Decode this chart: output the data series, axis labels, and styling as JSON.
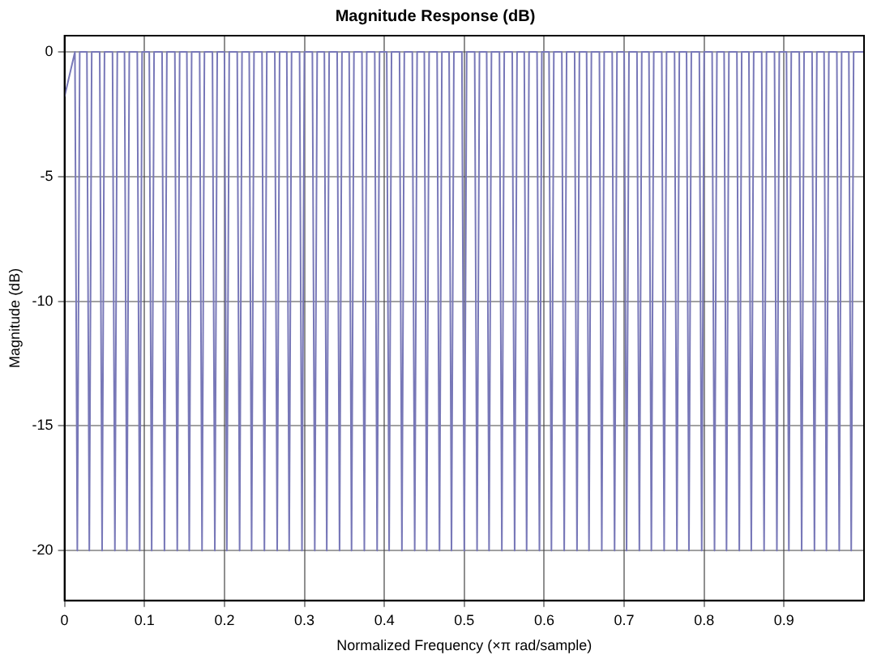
{
  "chart_data": {
    "type": "line",
    "title": "Magnitude Response (dB)",
    "xlabel": "Normalized Frequency (×π rad/sample)",
    "ylabel": "Magnitude (dB)",
    "xlim": [
      0,
      1
    ],
    "xticks": [
      0,
      0.1,
      0.2,
      0.3,
      0.4,
      0.5,
      0.6,
      0.7,
      0.8,
      0.9
    ],
    "ylim": [
      -22,
      0.65
    ],
    "yticks": [
      -20,
      -15,
      -10,
      -5,
      0
    ],
    "grid": true,
    "legend": false,
    "marker": "none",
    "line_style": "solid",
    "series": [
      {
        "color": "#7878b8",
        "x": [
          0,
          0.013,
          0.016,
          0.019,
          0.028,
          0.031,
          0.034,
          0.044,
          0.047,
          0.05,
          0.06,
          0.063,
          0.066,
          0.075,
          0.078,
          0.081,
          0.091,
          0.094,
          0.097,
          0.106,
          0.109,
          0.112,
          0.122,
          0.125,
          0.128,
          0.138,
          0.141,
          0.144,
          0.153,
          0.156,
          0.159,
          0.169,
          0.172,
          0.175,
          0.185,
          0.188,
          0.191,
          0.2,
          0.203,
          0.206,
          0.216,
          0.219,
          0.222,
          0.231,
          0.234,
          0.237,
          0.247,
          0.25,
          0.253,
          0.263,
          0.266,
          0.269,
          0.278,
          0.281,
          0.284,
          0.294,
          0.297,
          0.3,
          0.31,
          0.313,
          0.316,
          0.325,
          0.328,
          0.331,
          0.341,
          0.344,
          0.347,
          0.356,
          0.359,
          0.362,
          0.372,
          0.375,
          0.378,
          0.388,
          0.391,
          0.394,
          0.403,
          0.406,
          0.409,
          0.419,
          0.422,
          0.425,
          0.435,
          0.438,
          0.441,
          0.45,
          0.453,
          0.456,
          0.466,
          0.469,
          0.472,
          0.481,
          0.484,
          0.487,
          0.497,
          0.5,
          0.503,
          0.513,
          0.516,
          0.519,
          0.528,
          0.531,
          0.534,
          0.544,
          0.547,
          0.55,
          0.56,
          0.563,
          0.566,
          0.575,
          0.578,
          0.581,
          0.591,
          0.594,
          0.597,
          0.606,
          0.609,
          0.612,
          0.622,
          0.625,
          0.628,
          0.638,
          0.641,
          0.644,
          0.653,
          0.656,
          0.659,
          0.669,
          0.672,
          0.675,
          0.685,
          0.688,
          0.691,
          0.7,
          0.703,
          0.706,
          0.716,
          0.719,
          0.722,
          0.731,
          0.734,
          0.737,
          0.747,
          0.75,
          0.753,
          0.763,
          0.766,
          0.769,
          0.778,
          0.781,
          0.784,
          0.794,
          0.797,
          0.8,
          0.81,
          0.813,
          0.816,
          0.825,
          0.828,
          0.831,
          0.841,
          0.844,
          0.847,
          0.856,
          0.859,
          0.862,
          0.872,
          0.875,
          0.878,
          0.888,
          0.891,
          0.894,
          0.903,
          0.906,
          0.909,
          0.919,
          0.922,
          0.925,
          0.935,
          0.938,
          0.941,
          0.95,
          0.953,
          0.956,
          0.966,
          0.969,
          0.972,
          0.981,
          0.984,
          0.987,
          1
        ],
        "values": [
          -1.8,
          0,
          -20,
          0,
          0,
          -20,
          0,
          0,
          -20,
          0,
          0,
          -20,
          0,
          0,
          -20,
          0,
          0,
          -20,
          0,
          0,
          -20,
          0,
          0,
          -20,
          0,
          0,
          -20,
          0,
          0,
          -20,
          0,
          0,
          -20,
          0,
          0,
          -20,
          0,
          0,
          -20,
          0,
          0,
          -20,
          0,
          0,
          -20,
          0,
          0,
          -20,
          0,
          0,
          -20,
          0,
          0,
          -20,
          0,
          0,
          -20,
          0,
          0,
          -20,
          0,
          0,
          -20,
          0,
          0,
          -20,
          0,
          0,
          -20,
          0,
          0,
          -20,
          0,
          0,
          -20,
          0,
          0,
          -20,
          0,
          0,
          -20,
          0,
          0,
          -20,
          0,
          0,
          -20,
          0,
          0,
          -20,
          0,
          0,
          -20,
          0,
          0,
          -20,
          0,
          0,
          -20,
          0,
          0,
          -20,
          0,
          0,
          -20,
          0,
          0,
          -20,
          0,
          0,
          -20,
          0,
          0,
          -20,
          0,
          0,
          -20,
          0,
          0,
          -20,
          0,
          0,
          -20,
          0,
          0,
          -20,
          0,
          0,
          -20,
          0,
          0,
          -20,
          0,
          0,
          -20,
          0,
          0,
          -20,
          0,
          0,
          -20,
          0,
          0,
          -20,
          0,
          0,
          -20,
          0,
          0,
          -20,
          0,
          0,
          -20,
          0,
          0,
          -20,
          0,
          0,
          -20,
          0,
          0,
          -20,
          0,
          0,
          -20,
          0,
          0,
          -20,
          0,
          0,
          -20,
          0,
          0,
          -20,
          0,
          0,
          -20,
          0,
          0,
          -20,
          0,
          0,
          -20,
          0,
          0,
          -20,
          0,
          0,
          -20,
          0,
          0
        ]
      }
    ]
  }
}
